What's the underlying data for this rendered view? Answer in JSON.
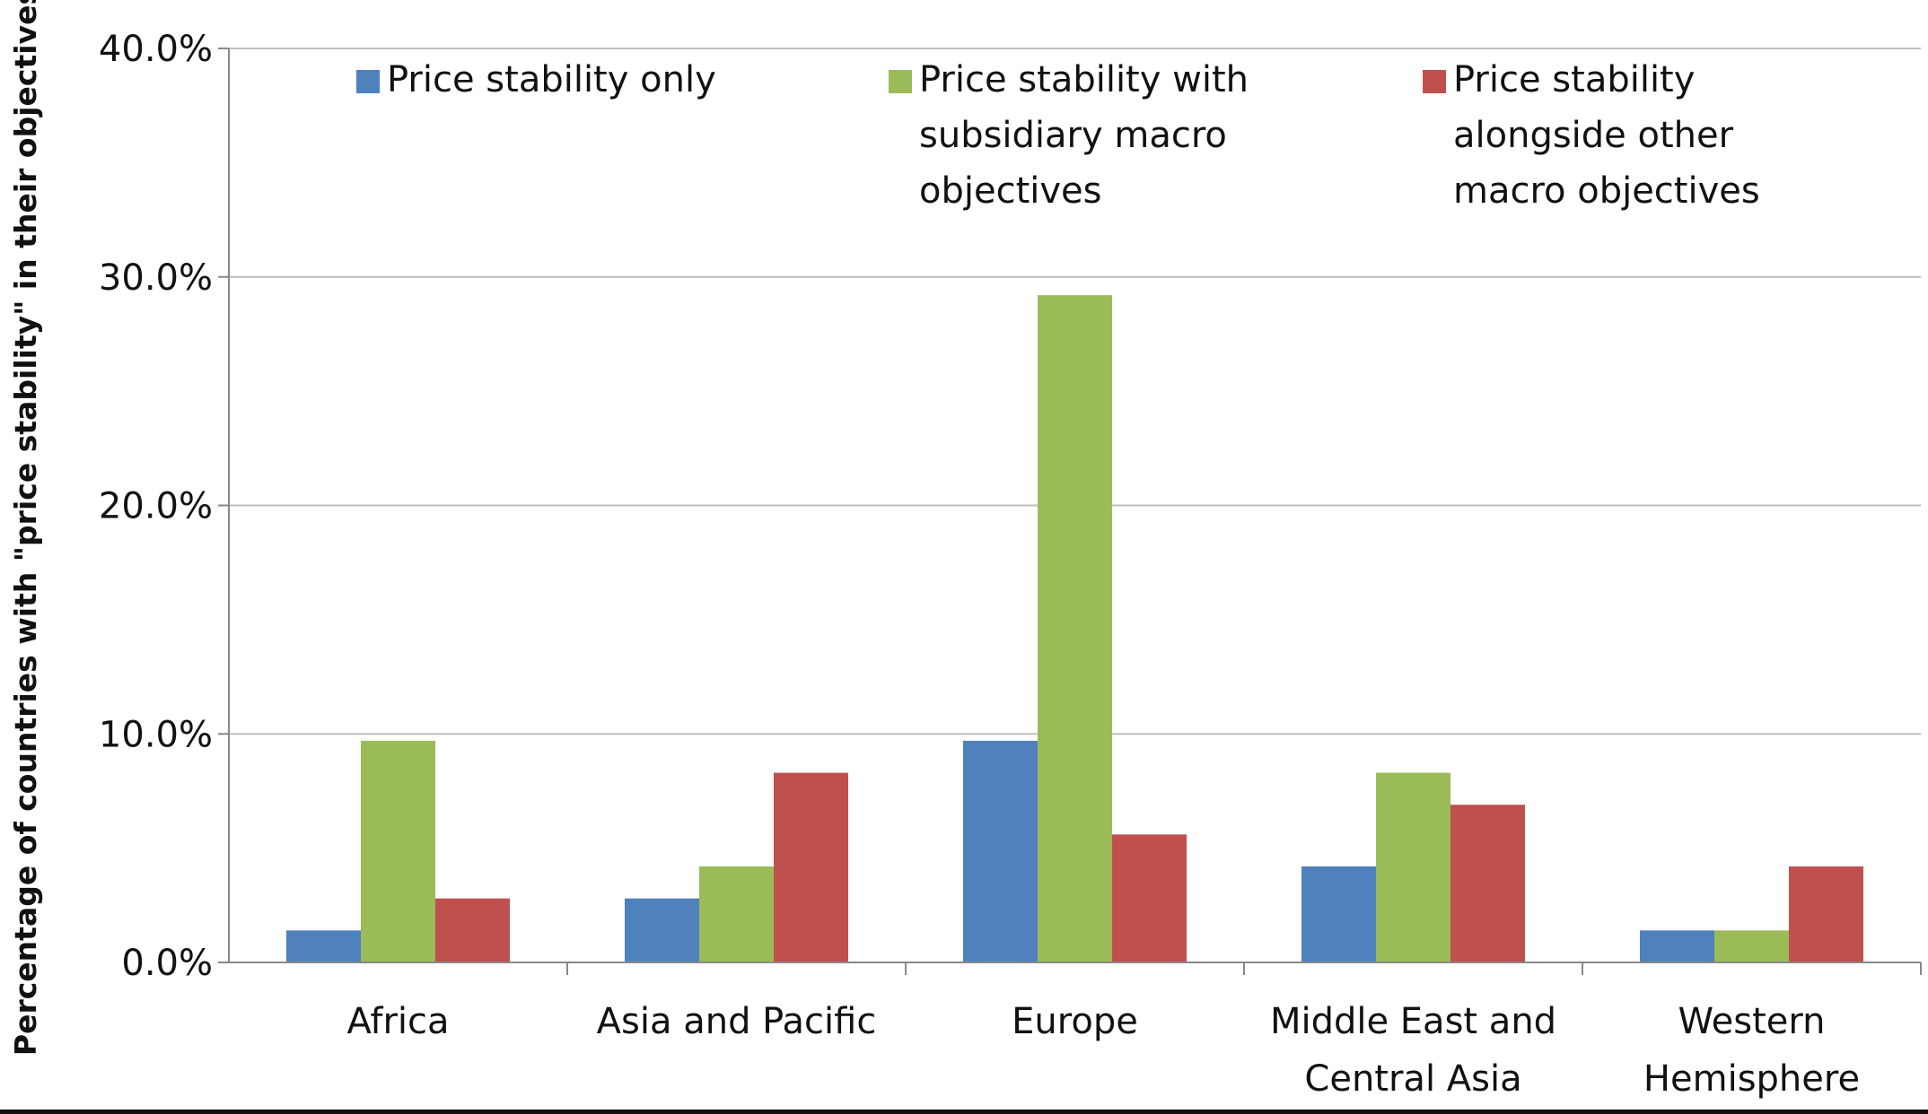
{
  "chart_data": {
    "type": "bar",
    "title": "",
    "xlabel": "",
    "ylabel": "Percentage of countries with \"price stability\" in their objectives",
    "ylim": [
      0,
      40
    ],
    "yticks": [
      "0.0%",
      "10.0%",
      "20.0%",
      "30.0%",
      "40.0%"
    ],
    "grid": true,
    "legend_position": "top",
    "categories": [
      [
        "Africa"
      ],
      [
        "Asia and Pacific"
      ],
      [
        "Europe"
      ],
      [
        "Middle East and",
        "Central Asia"
      ],
      [
        "Western",
        "Hemisphere"
      ]
    ],
    "series": [
      {
        "name": [
          "Price stability only"
        ],
        "color": "#4F81BD",
        "values": [
          1.4,
          2.8,
          9.7,
          4.2,
          1.4
        ]
      },
      {
        "name": [
          "Price stability with",
          "subsidiary macro",
          "objectives"
        ],
        "color": "#9BBB59",
        "values": [
          9.7,
          4.2,
          29.2,
          8.3,
          1.4
        ]
      },
      {
        "name": [
          "Price stability",
          "alongside other",
          "macro objectives"
        ],
        "color": "#C0504D",
        "values": [
          2.8,
          8.3,
          5.6,
          6.9,
          4.2
        ]
      }
    ]
  }
}
